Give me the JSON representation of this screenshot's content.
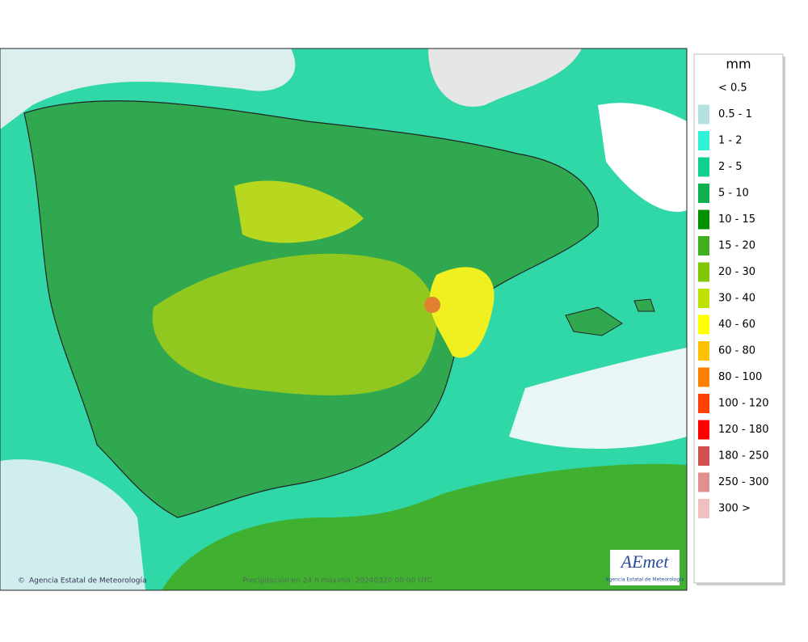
{
  "legend": {
    "title": "mm",
    "items": [
      {
        "label": "< 0.5",
        "color": "#ffffff"
      },
      {
        "label": "0.5 - 1",
        "color": "#b4e0e0"
      },
      {
        "label": "1 - 2",
        "color": "#30f0d8"
      },
      {
        "label": "2 - 5",
        "color": "#10d090"
      },
      {
        "label": "5 - 10",
        "color": "#10b050"
      },
      {
        "label": "10 - 15",
        "color": "#009000"
      },
      {
        "label": "15 - 20",
        "color": "#40b020"
      },
      {
        "label": "20 - 30",
        "color": "#80c800"
      },
      {
        "label": "30 - 40",
        "color": "#c0e000"
      },
      {
        "label": "40 - 60",
        "color": "#ffff00"
      },
      {
        "label": "60 - 80",
        "color": "#ffc000"
      },
      {
        "label": "80 - 100",
        "color": "#ff8000"
      },
      {
        "label": "100 - 120",
        "color": "#ff4000"
      },
      {
        "label": "120 - 180",
        "color": "#ff0000"
      },
      {
        "label": "180 - 250",
        "color": "#d05050"
      },
      {
        "label": "250 - 300",
        "color": "#e09090"
      },
      {
        "label": "300 >",
        "color": "#f0c0c0"
      }
    ]
  },
  "map": {
    "credit": "Agencia Estatal de Meteorología",
    "caption": "Precipitación en 24 h máxima. 20240320 00:00 UTC"
  },
  "logo": {
    "name": "AEmet",
    "subtitle": "Agencia Estatal de Meteorología"
  }
}
